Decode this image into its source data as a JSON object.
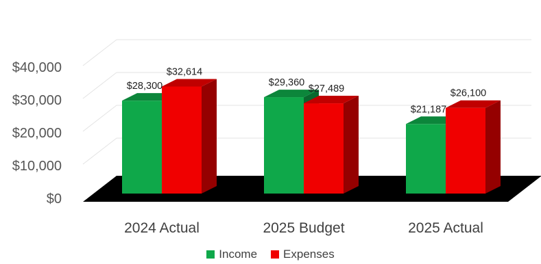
{
  "chart_data": {
    "type": "bar",
    "categories": [
      "2024 Actual",
      "2025 Budget",
      "2025 Actual"
    ],
    "series": [
      {
        "name": "Income",
        "values": [
          28300,
          29360,
          21187
        ],
        "labels": [
          "$28,300",
          "$29,360",
          "$21,187"
        ],
        "color": "#0fa84a"
      },
      {
        "name": "Expenses",
        "values": [
          32614,
          27489,
          26100
        ],
        "labels": [
          "$32,614",
          "$27,489",
          "$26,100"
        ],
        "color": "#f00000"
      }
    ],
    "yticks": [
      "$0",
      "$10,000",
      "$20,000",
      "$30,000",
      "$40,000"
    ],
    "ylim": [
      0,
      40000
    ],
    "title": "",
    "xlabel": "",
    "ylabel": "",
    "grid": true,
    "legend_position": "bottom",
    "style": "3d-column",
    "floor_color": "#000000"
  }
}
